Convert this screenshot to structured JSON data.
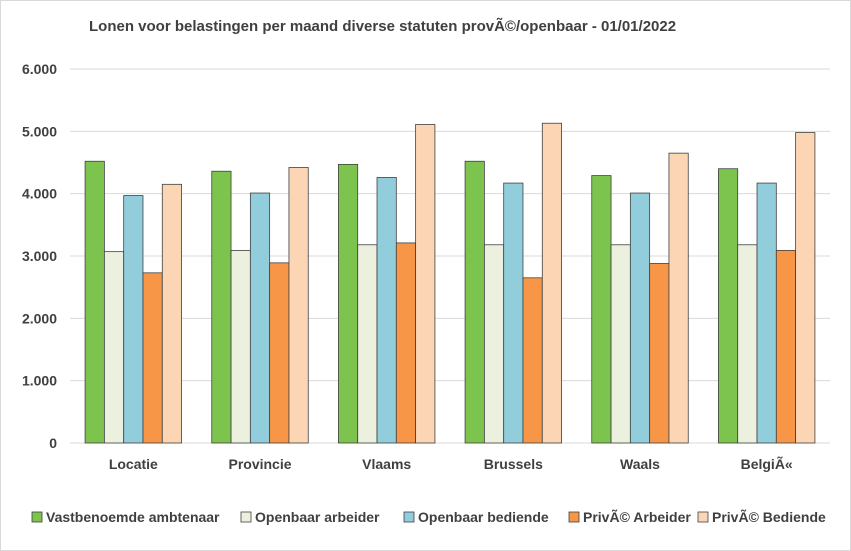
{
  "chart_data": {
    "type": "bar",
    "title": "Lonen voor belastingen per maand diverse statuten provÃ©/openbaar - 01/01/2022",
    "categories": [
      "Locatie",
      "Provincie",
      "Vlaams",
      "Brussels",
      "Waals",
      "BelgiÃ«"
    ],
    "ylim": [
      0,
      6000
    ],
    "yticks": [
      0,
      1000,
      2000,
      3000,
      4000,
      5000,
      6000
    ],
    "ytick_labels": [
      "0",
      "1.000",
      "2.000",
      "3.000",
      "4.000",
      "5.000",
      "6.000"
    ],
    "grid": true,
    "legend_position": "bottom",
    "series": [
      {
        "name": "Vastbenoemde ambtenaar",
        "color": "#7dc44e",
        "values": [
          4520,
          4360,
          4470,
          4520,
          4290,
          4400
        ]
      },
      {
        "name": "Openbaar arbeider",
        "color": "#ebf1de",
        "values": [
          3070,
          3090,
          3180,
          3180,
          3180,
          3180
        ]
      },
      {
        "name": "Openbaar bediende",
        "color": "#92cddc",
        "values": [
          3970,
          4010,
          4260,
          4170,
          4010,
          4170
        ]
      },
      {
        "name": "PrivÃ© Arbeider",
        "color": "#f79646",
        "values": [
          2730,
          2890,
          3210,
          2650,
          2880,
          3090
        ]
      },
      {
        "name": "PrivÃ© Bediende",
        "color": "#fcd5b4",
        "values": [
          4150,
          4420,
          5110,
          5130,
          4650,
          4980
        ]
      }
    ]
  }
}
